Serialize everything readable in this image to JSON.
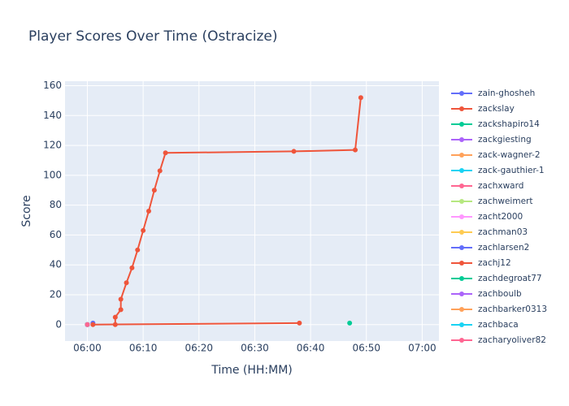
{
  "chart_data": {
    "type": "line",
    "title": "Player Scores Over Time (Ostracize)",
    "xlabel": "Time (HH:MM)",
    "ylabel": "Score",
    "xlim": [
      "05:56",
      "07:03"
    ],
    "xticks": [
      "06:00",
      "06:10",
      "06:20",
      "06:30",
      "06:40",
      "06:50",
      "07:00"
    ],
    "ylim": [
      -11,
      163
    ],
    "yticks": [
      0,
      20,
      40,
      60,
      80,
      100,
      120,
      140,
      160
    ],
    "grid": true,
    "legend": "right",
    "series": [
      {
        "name": "zain-ghosheh",
        "color": "#636efa",
        "x": [
          "06:01"
        ],
        "values": [
          1
        ]
      },
      {
        "name": "zackslay",
        "color": "#EF553B",
        "x": [
          "06:05",
          "06:05",
          "06:06",
          "06:06",
          "06:07",
          "06:08",
          "06:09",
          "06:10",
          "06:11",
          "06:12",
          "06:13",
          "06:14",
          "06:37",
          "06:48",
          "06:49"
        ],
        "values": [
          0,
          5,
          10,
          17,
          28,
          38,
          50,
          63,
          76,
          90,
          103,
          115,
          116,
          117,
          152
        ]
      },
      {
        "name": "zackshapiro14",
        "color": "#00cc96",
        "x": [
          "06:47"
        ],
        "values": [
          1
        ]
      },
      {
        "name": "zackgiesting",
        "color": "#ab63fa",
        "x": [
          "06:00"
        ],
        "values": [
          0
        ]
      },
      {
        "name": "zack-wagner-2",
        "color": "#FFA15A",
        "x": [
          "06:00"
        ],
        "values": [
          0
        ]
      },
      {
        "name": "zack-gauthier-1",
        "color": "#19d3f3",
        "x": [
          "06:00"
        ],
        "values": [
          0
        ]
      },
      {
        "name": "zachxward",
        "color": "#FF6692",
        "x": [
          "06:00"
        ],
        "values": [
          0
        ]
      },
      {
        "name": "zachweimert",
        "color": "#B6E880",
        "x": [
          "06:00"
        ],
        "values": [
          0
        ]
      },
      {
        "name": "zacht2000",
        "color": "#FF97FF",
        "x": [
          "06:00"
        ],
        "values": [
          0
        ]
      },
      {
        "name": "zachman03",
        "color": "#FECB52",
        "x": [
          "06:00"
        ],
        "values": [
          0
        ]
      },
      {
        "name": "zachlarsen2",
        "color": "#636efa",
        "x": [
          "06:00"
        ],
        "values": [
          0
        ]
      },
      {
        "name": "zachj12",
        "color": "#EF553B",
        "x": [
          "06:01",
          "06:38"
        ],
        "values": [
          0,
          1
        ]
      },
      {
        "name": "zachdegroat77",
        "color": "#00cc96",
        "x": [
          "06:00"
        ],
        "values": [
          0
        ]
      },
      {
        "name": "zachboulb",
        "color": "#ab63fa",
        "x": [
          "06:00"
        ],
        "values": [
          0
        ]
      },
      {
        "name": "zachbarker0313",
        "color": "#FFA15A",
        "x": [
          "06:00"
        ],
        "values": [
          0
        ]
      },
      {
        "name": "zachbaca",
        "color": "#19d3f3",
        "x": [
          "06:00"
        ],
        "values": [
          0
        ]
      },
      {
        "name": "zacharyoliver82",
        "color": "#FF6692",
        "x": [
          "06:00"
        ],
        "values": [
          0
        ]
      }
    ]
  }
}
